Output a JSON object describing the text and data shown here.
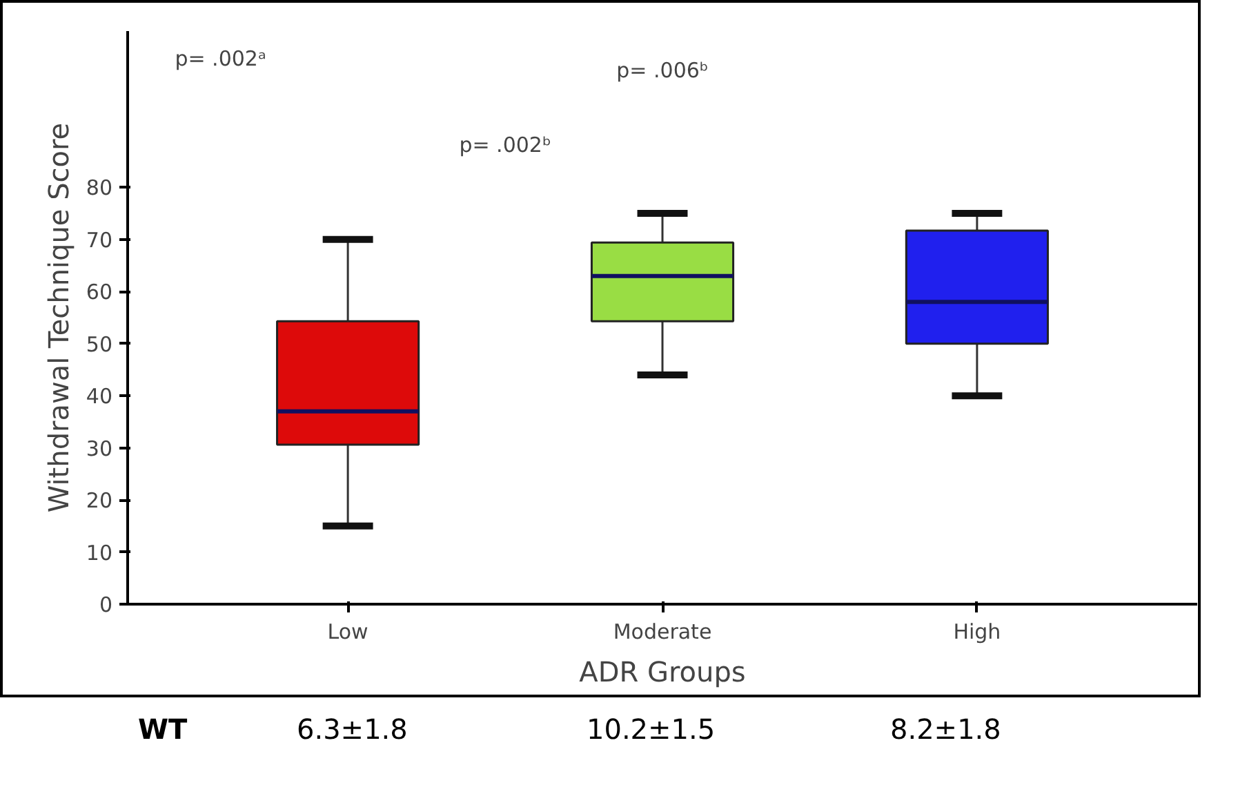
{
  "chart_data": {
    "type": "box",
    "xlabel": "ADR Groups",
    "ylabel": "Withdrawal Technique Score",
    "categories": [
      "Low",
      "Moderate",
      "High"
    ],
    "colors": [
      "#dd0a0a",
      "#99dd44",
      "#2020ee"
    ],
    "boxes": [
      {
        "low": 15,
        "q1": 30.6,
        "median": 37,
        "q3": 54.3,
        "high": 70
      },
      {
        "low": 44,
        "q1": 54.3,
        "median": 63,
        "q3": 69.4,
        "high": 75
      },
      {
        "low": 40,
        "q1": 50,
        "median": 58,
        "q3": 71.7,
        "high": 75
      }
    ],
    "ylim": [
      0,
      110
    ],
    "yticks": [
      0,
      10,
      20,
      30,
      40,
      50,
      60,
      70,
      80
    ],
    "grid": false,
    "annotations": [
      "p= .002ᵃ",
      "p= .006ᵇ",
      "p= .002ᵇ",
      "WT",
      "6.3±1.8",
      "10.2±1.5",
      "8.2±1.8"
    ]
  }
}
